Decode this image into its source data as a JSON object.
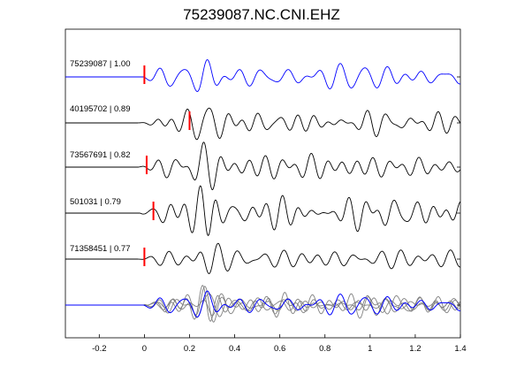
{
  "chart_data": {
    "type": "line",
    "title": "75239087.NC.CNI.EHZ",
    "xlabel": "",
    "ylabel": "",
    "xlim": [
      -0.35,
      1.4
    ],
    "x_ticks": [
      -0.2,
      0,
      0.2,
      0.4,
      0.6,
      0.8,
      1,
      1.2,
      1.4
    ],
    "x_tick_labels": [
      "-0.2",
      "0",
      "0.2",
      "0.4",
      "0.6",
      "0.8",
      "1",
      "1.2",
      "1.4"
    ],
    "grid": false,
    "colors": {
      "reference": "#0000ff",
      "trace": "#000000",
      "stack": "#808080",
      "pick": "#ff0000",
      "axis": "#000000"
    },
    "series": [
      {
        "label": "75239087 | 1.00",
        "id": "75239087",
        "cc": 1.0,
        "pick_time": 0.0,
        "color": "#0000ff",
        "flat_before": 0.0
      },
      {
        "label": "40195702 | 0.89",
        "id": "40195702",
        "cc": 0.89,
        "pick_time": 0.2,
        "color": "#000000",
        "flat_before": null
      },
      {
        "label": "73567691 | 0.82",
        "id": "73567691",
        "cc": 0.82,
        "pick_time": 0.01,
        "color": "#000000",
        "flat_before": null
      },
      {
        "label": "501031 | 0.79",
        "id": "501031",
        "cc": 0.79,
        "pick_time": 0.04,
        "color": "#000000",
        "flat_before": null
      },
      {
        "label": "71358451 | 0.77",
        "id": "71358451",
        "cc": 0.77,
        "pick_time": 0.0,
        "color": "#000000",
        "flat_before": null
      }
    ],
    "stack": {
      "label": "",
      "reference_color": "#0000ff",
      "overlay_color": "#808080",
      "flat_before": 0.0
    }
  }
}
